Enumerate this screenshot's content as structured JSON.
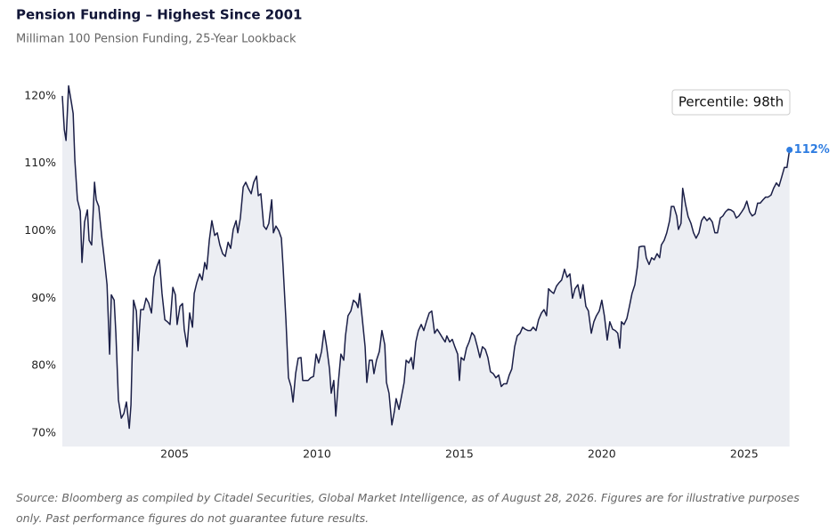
{
  "chart_data": {
    "type": "area-line",
    "title": "Pension Funding – Highest Since 2001",
    "subtitle": "Milliman 100 Pension Funding, 25-Year Lookback",
    "annotation": "Percentile: 98th",
    "end_label": "112%",
    "source": "Source: Bloomberg as compiled by Citadel Securities, Global Market Intelligence, as of August 28, 2026. Figures are for illustrative purposes only. Past performance figures do not guarantee future results.",
    "color": "#1b1f47",
    "fill": "#eceef3",
    "end_color": "#2f7de1",
    "xlim": [
      2001.06,
      2026.6
    ],
    "xticks": [
      2005,
      2010,
      2015,
      2020,
      2025
    ],
    "ylim": [
      68,
      121.7
    ],
    "yticks": [
      {
        "value": 70,
        "label": "70%"
      },
      {
        "value": 80,
        "label": "80%"
      },
      {
        "value": 90,
        "label": "90%"
      },
      {
        "value": 100,
        "label": "100%"
      },
      {
        "value": 110,
        "label": "110%"
      },
      {
        "value": 120,
        "label": "120%"
      }
    ],
    "x": [
      2001.06,
      2001.13,
      2001.19,
      2001.28,
      2001.38,
      2001.44,
      2001.5,
      2001.59,
      2001.69,
      2001.75,
      2001.84,
      2001.94,
      2002.0,
      2002.09,
      2002.19,
      2002.25,
      2002.34,
      2002.44,
      2002.53,
      2002.63,
      2002.72,
      2002.78,
      2002.88,
      2002.94,
      2003.03,
      2003.13,
      2003.22,
      2003.31,
      2003.41,
      2003.47,
      2003.56,
      2003.66,
      2003.72,
      2003.81,
      2003.91,
      2004.0,
      2004.09,
      2004.19,
      2004.28,
      2004.38,
      2004.47,
      2004.56,
      2004.66,
      2004.75,
      2004.84,
      2004.94,
      2005.03,
      2005.09,
      2005.19,
      2005.28,
      2005.34,
      2005.44,
      2005.53,
      2005.63,
      2005.69,
      2005.78,
      2005.88,
      2005.97,
      2006.06,
      2006.13,
      2006.22,
      2006.31,
      2006.41,
      2006.5,
      2006.59,
      2006.69,
      2006.78,
      2006.88,
      2006.97,
      2007.06,
      2007.16,
      2007.22,
      2007.31,
      2007.41,
      2007.5,
      2007.59,
      2007.69,
      2007.78,
      2007.88,
      2007.94,
      2008.03,
      2008.13,
      2008.22,
      2008.31,
      2008.41,
      2008.47,
      2008.56,
      2008.66,
      2008.75,
      2008.81,
      2008.91,
      2009.0,
      2009.09,
      2009.16,
      2009.25,
      2009.34,
      2009.44,
      2009.5,
      2009.59,
      2009.69,
      2009.78,
      2009.88,
      2009.97,
      2010.06,
      2010.16,
      2010.25,
      2010.34,
      2010.44,
      2010.5,
      2010.59,
      2010.66,
      2010.75,
      2010.84,
      2010.94,
      2011.0,
      2011.09,
      2011.19,
      2011.28,
      2011.38,
      2011.44,
      2011.5,
      2011.59,
      2011.69,
      2011.75,
      2011.84,
      2011.94,
      2012.0,
      2012.09,
      2012.19,
      2012.28,
      2012.38,
      2012.44,
      2012.53,
      2012.63,
      2012.72,
      2012.78,
      2012.88,
      2012.97,
      2013.06,
      2013.13,
      2013.22,
      2013.31,
      2013.38,
      2013.47,
      2013.56,
      2013.66,
      2013.75,
      2013.84,
      2013.94,
      2014.03,
      2014.13,
      2014.22,
      2014.31,
      2014.41,
      2014.5,
      2014.56,
      2014.66,
      2014.75,
      2014.84,
      2014.94,
      2015.0,
      2015.06,
      2015.16,
      2015.25,
      2015.34,
      2015.44,
      2015.53,
      2015.63,
      2015.72,
      2015.81,
      2015.91,
      2016.0,
      2016.09,
      2016.19,
      2016.28,
      2016.38,
      2016.47,
      2016.56,
      2016.66,
      2016.75,
      2016.84,
      2016.94,
      2017.03,
      2017.13,
      2017.22,
      2017.31,
      2017.41,
      2017.5,
      2017.59,
      2017.69,
      2017.78,
      2017.88,
      2017.97,
      2018.06,
      2018.13,
      2018.22,
      2018.31,
      2018.41,
      2018.5,
      2018.59,
      2018.69,
      2018.78,
      2018.88,
      2018.97,
      2019.06,
      2019.16,
      2019.25,
      2019.34,
      2019.44,
      2019.53,
      2019.63,
      2019.72,
      2019.81,
      2019.91,
      2020.0,
      2020.09,
      2020.19,
      2020.28,
      2020.38,
      2020.47,
      2020.56,
      2020.63,
      2020.69,
      2020.78,
      2020.88,
      2020.97,
      2021.06,
      2021.16,
      2021.25,
      2021.31,
      2021.41,
      2021.5,
      2021.56,
      2021.66,
      2021.75,
      2021.84,
      2021.94,
      2022.03,
      2022.09,
      2022.19,
      2022.28,
      2022.38,
      2022.44,
      2022.53,
      2022.63,
      2022.69,
      2022.78,
      2022.84,
      2022.94,
      2023.03,
      2023.13,
      2023.22,
      2023.31,
      2023.41,
      2023.5,
      2023.59,
      2023.69,
      2023.78,
      2023.88,
      2023.97,
      2024.06,
      2024.16,
      2024.25,
      2024.34,
      2024.44,
      2024.53,
      2024.63,
      2024.72,
      2024.81,
      2024.91,
      2025.0,
      2025.09,
      2025.19,
      2025.28,
      2025.38,
      2025.47,
      2025.56,
      2025.66,
      2025.75,
      2025.84,
      2025.94,
      2026.03,
      2026.13,
      2026.22,
      2026.31,
      2026.41,
      2026.5,
      2026.59
    ],
    "values": [
      120,
      115,
      113.4,
      121.5,
      119,
      117.4,
      110.5,
      104.6,
      102.9,
      95.3,
      101.3,
      103.1,
      98.6,
      97.9,
      107.2,
      104.6,
      103.6,
      99.3,
      96,
      92,
      81.7,
      90.5,
      89.7,
      84.8,
      74.9,
      72.2,
      72.9,
      74.6,
      70.7,
      74.2,
      89.7,
      88.1,
      82.2,
      88.3,
      88.3,
      90,
      89.3,
      87.8,
      93.1,
      94.7,
      95.7,
      90.7,
      86.8,
      86.5,
      86.1,
      91.6,
      90.5,
      86.1,
      88.8,
      89.2,
      85.4,
      82.8,
      87.8,
      85.7,
      90.7,
      92.3,
      93.6,
      92.7,
      95.3,
      94.3,
      98.6,
      101.5,
      99.3,
      99.7,
      97.9,
      96.6,
      96.2,
      98.3,
      97.4,
      100.2,
      101.5,
      99.7,
      101.9,
      106.5,
      107.2,
      106.3,
      105.5,
      107.2,
      108.1,
      105.2,
      105.5,
      100.7,
      100.2,
      101.1,
      104.6,
      99.7,
      100.7,
      100,
      98.9,
      94.7,
      86.8,
      78.2,
      76.9,
      74.6,
      78.8,
      81.1,
      81.2,
      77.8,
      77.8,
      77.8,
      78.2,
      78.4,
      81.7,
      80.4,
      82.1,
      85.2,
      82.8,
      79.5,
      75.9,
      77.8,
      72.5,
      77.5,
      81.7,
      80.8,
      84.4,
      87.4,
      88.1,
      89.7,
      89.3,
      88.6,
      90.7,
      87,
      82.8,
      77.5,
      80.8,
      80.8,
      78.8,
      80.8,
      82.1,
      85.2,
      83.1,
      77.5,
      75.9,
      71.2,
      73.3,
      75.1,
      73.5,
      75.5,
      77.5,
      80.8,
      80.4,
      81.2,
      79.5,
      83.5,
      85.2,
      86.1,
      85.2,
      86.5,
      87.8,
      88.1,
      84.8,
      85.4,
      84.8,
      84.1,
      83.5,
      84.4,
      83.5,
      83.9,
      82.8,
      81.7,
      77.8,
      81.2,
      80.8,
      82.6,
      83.5,
      84.9,
      84.4,
      82.8,
      81.2,
      82.8,
      82.4,
      81.2,
      79.1,
      78.8,
      78.2,
      78.6,
      76.9,
      77.3,
      77.3,
      78.6,
      79.5,
      82.8,
      84.4,
      84.8,
      85.7,
      85.4,
      85.2,
      85.2,
      85.7,
      85.2,
      86.8,
      87.8,
      88.3,
      87.4,
      91.4,
      91,
      90.7,
      91.8,
      92.3,
      92.7,
      94.3,
      93.1,
      93.6,
      90,
      91.4,
      92,
      90,
      92,
      88.8,
      88.1,
      84.8,
      86.5,
      87.4,
      88.1,
      89.7,
      87.4,
      83.8,
      86.5,
      85.4,
      85.2,
      84.8,
      82.6,
      86.5,
      86.1,
      87,
      88.8,
      90.7,
      92,
      94.7,
      97.6,
      97.7,
      97.7,
      96,
      95,
      96,
      95.7,
      96.6,
      96,
      97.9,
      98.6,
      99.7,
      101.5,
      103.6,
      103.6,
      102.2,
      100.2,
      101.1,
      106.3,
      103.9,
      102.1,
      101.1,
      99.7,
      98.9,
      99.7,
      101.5,
      102.1,
      101.5,
      101.9,
      101.3,
      99.7,
      99.7,
      101.9,
      102.2,
      102.8,
      103.2,
      103.1,
      102.8,
      101.9,
      102.2,
      102.8,
      103.4,
      104.4,
      102.8,
      102.2,
      102.5,
      104.1,
      104.1,
      104.6,
      105,
      105,
      105.3,
      106.3,
      107.1,
      106.6,
      107.9,
      109.4,
      109.4,
      112
    ]
  }
}
